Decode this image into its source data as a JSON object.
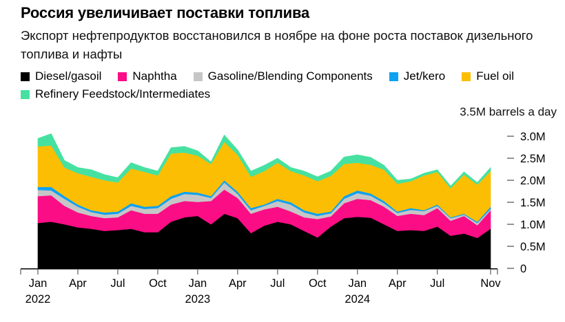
{
  "header": {
    "title": "Россия увеличивает поставки топлива",
    "subtitle": "Экспорт нефтепродуктов восстановился в ноябре на фоне роста поставок дизельного топлива и нафты"
  },
  "chart_data": {
    "type": "area",
    "stacked": true,
    "title": "Россия увеличивает поставки топлива",
    "unit_label": "3.5M barrels a day",
    "ylim": [
      0,
      3.5
    ],
    "grid": false,
    "legend_position": "top",
    "months": [
      "Jan 2022",
      "Feb 2022",
      "Mar 2022",
      "Apr 2022",
      "May 2022",
      "Jun 2022",
      "Jul 2022",
      "Aug 2022",
      "Sep 2022",
      "Oct 2022",
      "Nov 2022",
      "Dec 2022",
      "Jan 2023",
      "Feb 2023",
      "Mar 2023",
      "Apr 2023",
      "May 2023",
      "Jun 2023",
      "Jul 2023",
      "Aug 2023",
      "Sep 2023",
      "Oct 2023",
      "Nov 2023",
      "Dec 2023",
      "Jan 2024",
      "Feb 2024",
      "Mar 2024",
      "Apr 2024",
      "May 2024",
      "Jun 2024",
      "Jul 2024",
      "Aug 2024",
      "Sep 2024",
      "Oct 2024",
      "Nov 2024"
    ],
    "x_ticks": [
      {
        "index": 0,
        "label": "Jan",
        "year": "2022"
      },
      {
        "index": 3,
        "label": "Apr"
      },
      {
        "index": 6,
        "label": "Jul"
      },
      {
        "index": 9,
        "label": "Oct"
      },
      {
        "index": 12,
        "label": "Jan",
        "year": "2023"
      },
      {
        "index": 15,
        "label": "Apr"
      },
      {
        "index": 18,
        "label": "Jul"
      },
      {
        "index": 21,
        "label": "Oct"
      },
      {
        "index": 24,
        "label": "Jan",
        "year": "2024"
      },
      {
        "index": 27,
        "label": "Apr"
      },
      {
        "index": 30,
        "label": "Jul"
      },
      {
        "index": 34,
        "label": "Nov"
      }
    ],
    "y_ticks": [
      {
        "value": 3.0,
        "label": "3.0M"
      },
      {
        "value": 2.5,
        "label": "2.5M"
      },
      {
        "value": 2.0,
        "label": "2.0M"
      },
      {
        "value": 1.5,
        "label": "1.5M"
      },
      {
        "value": 1.0,
        "label": "1.0M"
      },
      {
        "value": 0.5,
        "label": "0.5M"
      },
      {
        "value": 0,
        "label": "0"
      }
    ],
    "series": [
      {
        "name": "Diesel/gasoil",
        "color": "#000000",
        "values": [
          1.03,
          1.06,
          1.0,
          0.93,
          0.9,
          0.85,
          0.87,
          0.9,
          0.82,
          0.82,
          1.06,
          1.16,
          1.19,
          1.0,
          1.24,
          1.14,
          0.8,
          0.97,
          1.06,
          1.0,
          0.85,
          0.7,
          0.95,
          1.14,
          1.17,
          1.15,
          1.0,
          0.85,
          0.87,
          0.85,
          0.95,
          0.74,
          0.79,
          0.69,
          0.9
        ]
      },
      {
        "name": "Naphtha",
        "color": "#fb0d85",
        "values": [
          0.61,
          0.6,
          0.42,
          0.34,
          0.29,
          0.29,
          0.29,
          0.42,
          0.42,
          0.42,
          0.39,
          0.37,
          0.32,
          0.53,
          0.55,
          0.46,
          0.44,
          0.37,
          0.34,
          0.29,
          0.31,
          0.42,
          0.23,
          0.34,
          0.41,
          0.4,
          0.4,
          0.34,
          0.37,
          0.36,
          0.42,
          0.34,
          0.4,
          0.29,
          0.42
        ]
      },
      {
        "name": "Gasoline/Blending Components",
        "color": "#c6c6c6",
        "values": [
          0.14,
          0.11,
          0.16,
          0.13,
          0.09,
          0.08,
          0.08,
          0.1,
          0.11,
          0.13,
          0.13,
          0.16,
          0.16,
          0.07,
          0.16,
          0.09,
          0.08,
          0.08,
          0.13,
          0.16,
          0.11,
          0.07,
          0.07,
          0.1,
          0.13,
          0.1,
          0.08,
          0.07,
          0.09,
          0.09,
          0.05,
          0.06,
          0.03,
          0.05,
          0.03
        ]
      },
      {
        "name": "Jet/kero",
        "color": "#0da2f2",
        "values": [
          0.07,
          0.08,
          0.06,
          0.05,
          0.04,
          0.05,
          0.05,
          0.06,
          0.05,
          0.05,
          0.06,
          0.05,
          0.05,
          0.04,
          0.05,
          0.05,
          0.05,
          0.03,
          0.05,
          0.05,
          0.05,
          0.05,
          0.04,
          0.06,
          0.06,
          0.05,
          0.05,
          0.03,
          0.04,
          0.02,
          0.03,
          0.02,
          0.02,
          0.03,
          0.05
        ]
      },
      {
        "name": "Fuel oil",
        "color": "#fcbe03",
        "values": [
          0.92,
          0.94,
          0.65,
          0.71,
          0.76,
          0.73,
          0.66,
          0.79,
          0.79,
          0.69,
          0.97,
          0.89,
          0.84,
          0.73,
          0.87,
          0.84,
          0.71,
          0.76,
          0.82,
          0.71,
          0.79,
          0.74,
          0.81,
          0.73,
          0.63,
          0.65,
          0.71,
          0.63,
          0.61,
          0.79,
          0.74,
          0.66,
          0.89,
          0.84,
          0.81
        ]
      },
      {
        "name": "Refinery Feedstock/Intermediates",
        "color": "#46e1a1",
        "values": [
          0.18,
          0.27,
          0.16,
          0.13,
          0.16,
          0.13,
          0.11,
          0.13,
          0.1,
          0.1,
          0.13,
          0.14,
          0.11,
          0.05,
          0.16,
          0.11,
          0.13,
          0.13,
          0.1,
          0.08,
          0.1,
          0.1,
          0.11,
          0.16,
          0.18,
          0.17,
          0.1,
          0.08,
          0.05,
          0.05,
          0.05,
          0.05,
          0.06,
          0.05,
          0.08
        ]
      }
    ]
  }
}
